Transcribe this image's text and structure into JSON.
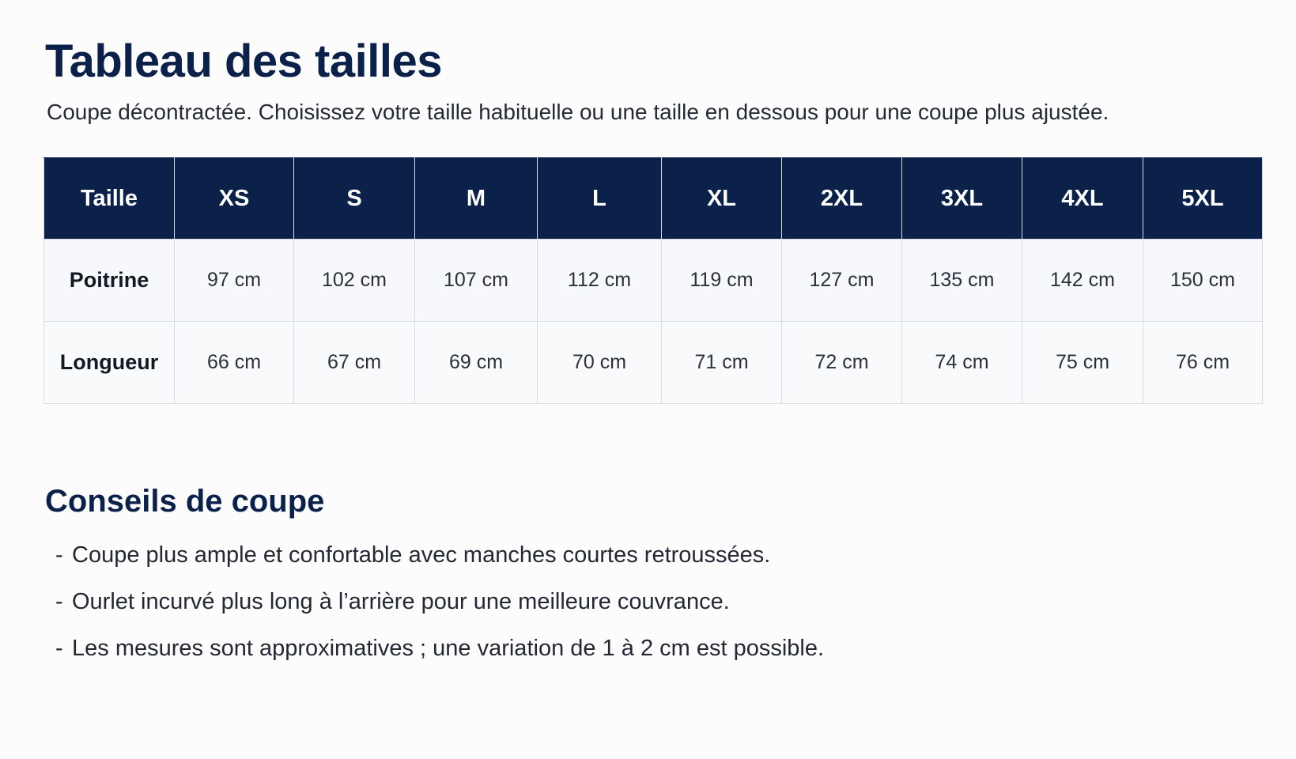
{
  "title": "Tableau des tailles",
  "subtitle": "Coupe décontractée. Choisissez votre taille habituelle ou une taille en dessous pour une coupe plus ajustée.",
  "table": {
    "header_label": "Taille",
    "sizes": [
      "XS",
      "S",
      "M",
      "L",
      "XL",
      "2XL",
      "3XL",
      "4XL",
      "5XL"
    ],
    "rows": [
      {
        "label": "Poitrine",
        "values": [
          "97 cm",
          "102 cm",
          "107 cm",
          "112 cm",
          "119 cm",
          "127 cm",
          "135 cm",
          "142 cm",
          "150 cm"
        ]
      },
      {
        "label": "Longueur",
        "values": [
          "66 cm",
          "67 cm",
          "69 cm",
          "70 cm",
          "71 cm",
          "72 cm",
          "74 cm",
          "75 cm",
          "76 cm"
        ]
      }
    ]
  },
  "tips": {
    "title": "Conseils de coupe",
    "bullet": "-",
    "items": [
      "Coupe plus ample et confortable avec manches courtes retroussées.",
      "Ourlet incurvé plus long à l’arrière pour une meilleure couvrance.",
      "Les mesures sont approximatives ; une variation de 1 à 2 cm est possible."
    ]
  },
  "colors": {
    "header_background": "#0b2149",
    "title_text": "#0b2149",
    "page_background": "#fcfcfd"
  }
}
